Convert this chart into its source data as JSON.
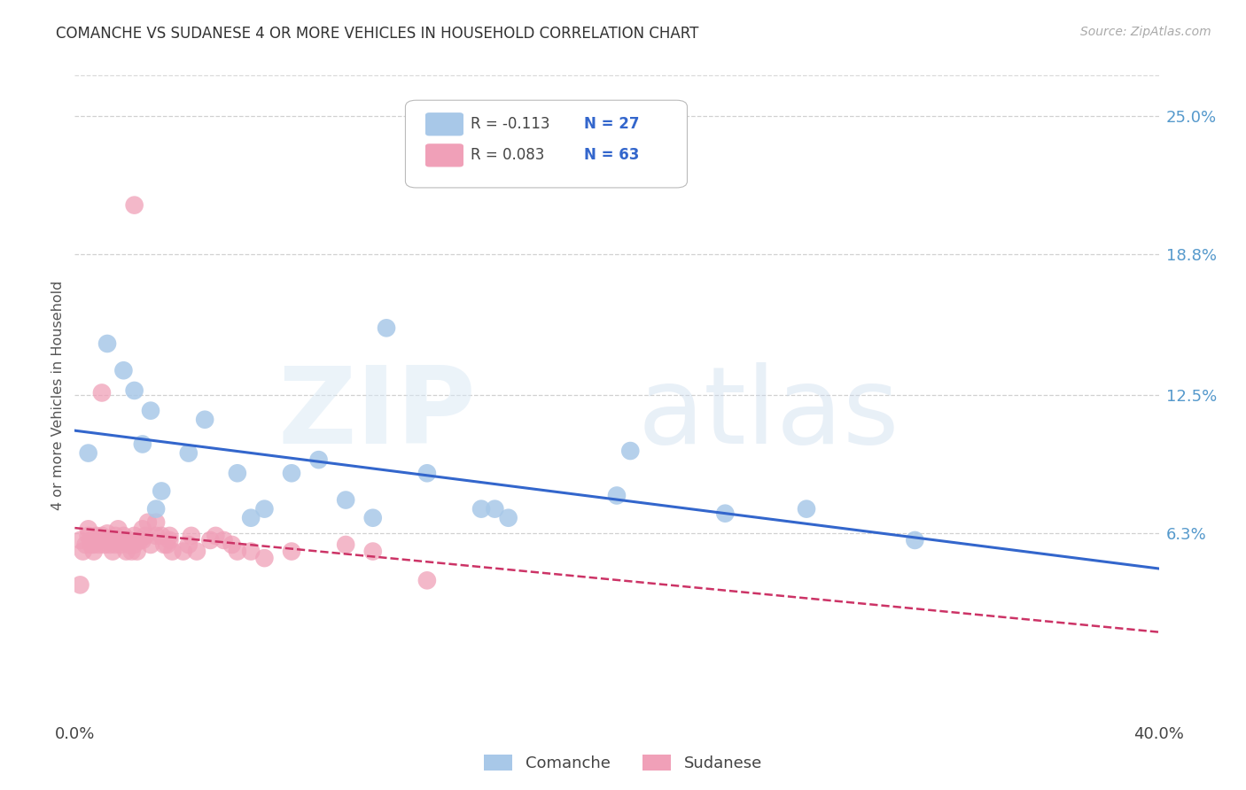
{
  "title": "COMANCHE VS SUDANESE 4 OR MORE VEHICLES IN HOUSEHOLD CORRELATION CHART",
  "source": "Source: ZipAtlas.com",
  "ylabel": "4 or more Vehicles in Household",
  "ytick_labels": [
    "6.3%",
    "12.5%",
    "18.8%",
    "25.0%"
  ],
  "ytick_values": [
    0.063,
    0.125,
    0.188,
    0.25
  ],
  "xlim": [
    0.0,
    0.4
  ],
  "ylim": [
    -0.02,
    0.27
  ],
  "legend_r_comanche": "R = -0.113",
  "legend_n_comanche": "N = 27",
  "legend_r_sudanese": "R = 0.083",
  "legend_n_sudanese": "N = 63",
  "comanche_color": "#a8c8e8",
  "sudanese_color": "#f0a0b8",
  "trendline_comanche_color": "#3366cc",
  "trendline_sudanese_color": "#cc3366",
  "background_color": "#ffffff",
  "grid_color": "#cccccc",
  "comanche_x": [
    0.005,
    0.012,
    0.018,
    0.022,
    0.025,
    0.028,
    0.03,
    0.032,
    0.042,
    0.048,
    0.06,
    0.065,
    0.07,
    0.08,
    0.09,
    0.1,
    0.11,
    0.115,
    0.13,
    0.15,
    0.155,
    0.16,
    0.2,
    0.205,
    0.24,
    0.27,
    0.31
  ],
  "comanche_y": [
    0.099,
    0.148,
    0.136,
    0.127,
    0.103,
    0.118,
    0.074,
    0.082,
    0.099,
    0.114,
    0.09,
    0.07,
    0.074,
    0.09,
    0.096,
    0.078,
    0.07,
    0.155,
    0.09,
    0.074,
    0.074,
    0.07,
    0.08,
    0.1,
    0.072,
    0.074,
    0.06
  ],
  "sudanese_x": [
    0.002,
    0.003,
    0.004,
    0.005,
    0.005,
    0.006,
    0.006,
    0.007,
    0.007,
    0.008,
    0.009,
    0.01,
    0.01,
    0.011,
    0.012,
    0.012,
    0.013,
    0.014,
    0.015,
    0.015,
    0.016,
    0.017,
    0.018,
    0.018,
    0.019,
    0.02,
    0.02,
    0.021,
    0.022,
    0.022,
    0.023,
    0.024,
    0.025,
    0.025,
    0.026,
    0.027,
    0.028,
    0.03,
    0.03,
    0.032,
    0.033,
    0.034,
    0.035,
    0.035,
    0.036,
    0.04,
    0.042,
    0.043,
    0.045,
    0.05,
    0.052,
    0.055,
    0.058,
    0.06,
    0.065,
    0.07,
    0.08,
    0.1,
    0.11,
    0.13,
    0.002,
    0.01,
    0.022
  ],
  "sudanese_y": [
    0.06,
    0.055,
    0.058,
    0.065,
    0.062,
    0.06,
    0.058,
    0.058,
    0.055,
    0.062,
    0.058,
    0.062,
    0.06,
    0.058,
    0.06,
    0.063,
    0.058,
    0.055,
    0.062,
    0.058,
    0.065,
    0.058,
    0.062,
    0.06,
    0.055,
    0.06,
    0.058,
    0.055,
    0.062,
    0.058,
    0.055,
    0.06,
    0.065,
    0.06,
    0.062,
    0.068,
    0.058,
    0.068,
    0.062,
    0.062,
    0.058,
    0.058,
    0.06,
    0.062,
    0.055,
    0.055,
    0.058,
    0.062,
    0.055,
    0.06,
    0.062,
    0.06,
    0.058,
    0.055,
    0.055,
    0.052,
    0.055,
    0.058,
    0.055,
    0.042,
    0.04,
    0.126,
    0.21
  ]
}
